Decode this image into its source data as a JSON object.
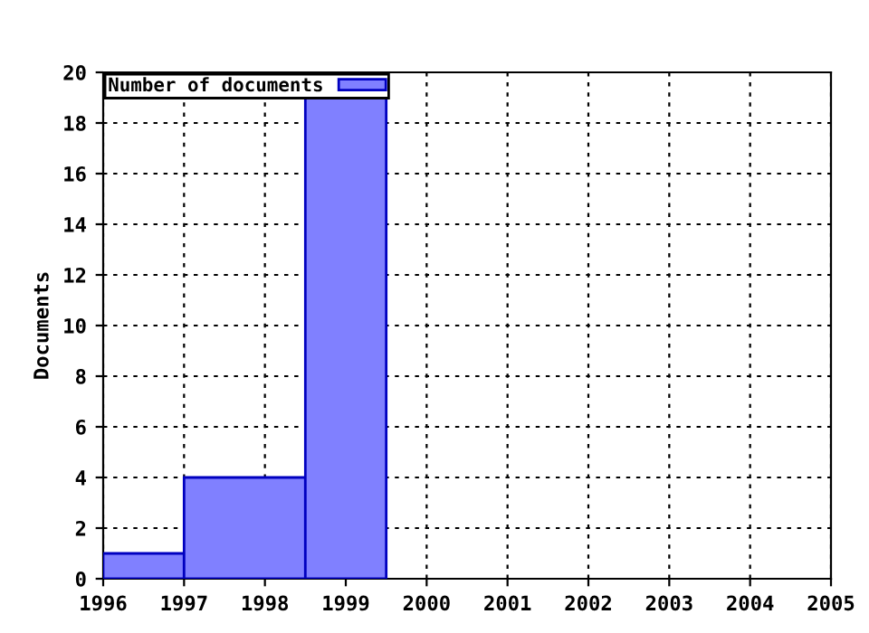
{
  "chart_data": {
    "type": "histogram",
    "ylabel": "Documents",
    "bins": [
      1996,
      1997,
      1998.5,
      1999.5
    ],
    "series": [
      {
        "name": "Number of documents",
        "color": "#8080ff",
        "values": [
          1,
          4,
          19
        ]
      }
    ],
    "xlim": [
      1996,
      2005
    ],
    "xticks": [
      1996,
      1997,
      1998,
      1999,
      2000,
      2001,
      2002,
      2003,
      2004,
      2005
    ],
    "ylim": [
      0,
      20
    ],
    "yticks": [
      0,
      2,
      4,
      6,
      8,
      10,
      12,
      14,
      16,
      18,
      20
    ],
    "grid": true,
    "legend": "top left"
  }
}
